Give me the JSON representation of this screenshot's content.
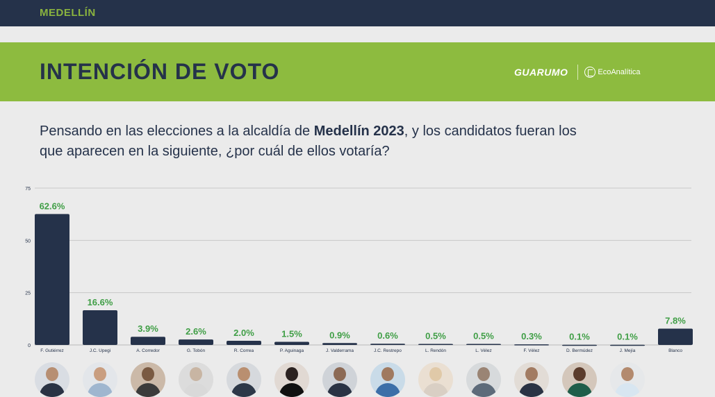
{
  "header": {
    "city": "MEDELLÍN"
  },
  "banner": {
    "title": "INTENCIÓN DE VOTO",
    "logo_primary": "GUARUMO",
    "logo_secondary": "EcoAnalítica"
  },
  "question": {
    "part1": "Pensando en las elecciones a la alcaldía de ",
    "bold": "Medellín 2023",
    "part2": ", y los candidatos fueran los que aparecen en la siguiente, ¿por cuál de ellos votaría?"
  },
  "colors": {
    "bar": "#25324a",
    "label": "#3f9e45",
    "banner": "#8dbb3f",
    "topbar": "#25324a"
  },
  "chart_data": {
    "type": "bar",
    "categories": [
      "F. Gutiérrez",
      "J.C. Upegi",
      "A. Corredor",
      "G. Tobón",
      "R. Correa",
      "P. Aguinaga",
      "J. Valderrama",
      "J.C. Restrepo",
      "L. Rendón",
      "L. Vélez",
      "F. Vélez",
      "D. Bermúdez",
      "J. Mejía",
      "Blanco"
    ],
    "values": [
      62.6,
      16.6,
      3.9,
      2.6,
      2.0,
      1.5,
      0.9,
      0.6,
      0.5,
      0.5,
      0.3,
      0.1,
      0.1,
      7.8
    ],
    "data_labels": [
      "62.6%",
      "16.6%",
      "3.9%",
      "2.6%",
      "2.0%",
      "1.5%",
      "0.9%",
      "0.6%",
      "0.5%",
      "0.5%",
      "0.3%",
      "0.1%",
      "0.1%",
      "7.8%"
    ],
    "ylim": [
      0,
      75
    ],
    "yticks": [
      0,
      25,
      50,
      75
    ],
    "grid": true,
    "xlabel": "",
    "ylabel": ""
  },
  "candidate_photos": [
    "photo",
    "photo",
    "photo",
    "photo",
    "photo",
    "photo",
    "photo",
    "photo",
    "photo",
    "photo",
    "photo",
    "photo",
    "photo"
  ]
}
